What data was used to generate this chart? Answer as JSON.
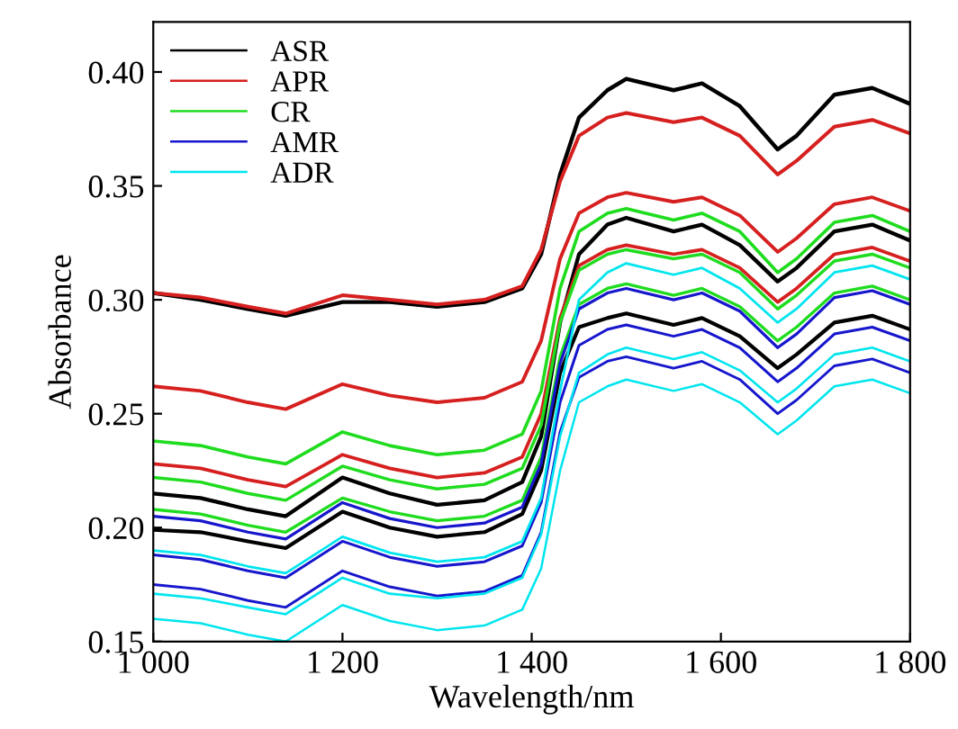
{
  "chart_data": {
    "type": "line",
    "xlabel": "Wavelength/nm",
    "ylabel": "Absorbance",
    "x": [
      1000,
      1050,
      1100,
      1140,
      1200,
      1250,
      1300,
      1350,
      1390,
      1410,
      1430,
      1450,
      1480,
      1500,
      1550,
      1580,
      1620,
      1660,
      1680,
      1720,
      1760,
      1800
    ],
    "xlim": [
      1000,
      1800
    ],
    "xticks": [
      {
        "value": 1000,
        "label": "1 000"
      },
      {
        "value": 1200,
        "label": "1 200"
      },
      {
        "value": 1400,
        "label": "1 400"
      },
      {
        "value": 1600,
        "label": "1 600"
      },
      {
        "value": 1800,
        "label": "1 800"
      }
    ],
    "ylim": [
      0.15,
      0.422
    ],
    "yticks": [
      {
        "value": 0.15,
        "label": "0.15"
      },
      {
        "value": 0.2,
        "label": "0.20"
      },
      {
        "value": 0.25,
        "label": "0.25"
      },
      {
        "value": 0.3,
        "label": "0.30"
      },
      {
        "value": 0.35,
        "label": "0.35"
      },
      {
        "value": 0.4,
        "label": "0.40"
      }
    ],
    "grid": false,
    "legend": "top left",
    "series": [
      {
        "name": "ASR",
        "color": "#000000",
        "values": [
          0.303,
          0.3,
          0.296,
          0.293,
          0.299,
          0.299,
          0.297,
          0.299,
          0.305,
          0.32,
          0.355,
          0.38,
          0.392,
          0.397,
          0.392,
          0.395,
          0.385,
          0.366,
          0.372,
          0.39,
          0.393,
          0.386
        ]
      },
      {
        "color": "#000000",
        "values": [
          0.215,
          0.213,
          0.208,
          0.205,
          0.222,
          0.215,
          0.21,
          0.212,
          0.22,
          0.24,
          0.29,
          0.32,
          0.333,
          0.336,
          0.33,
          0.333,
          0.324,
          0.308,
          0.314,
          0.33,
          0.333,
          0.326
        ]
      },
      {
        "color": "#000000",
        "values": [
          0.199,
          0.198,
          0.194,
          0.191,
          0.207,
          0.2,
          0.196,
          0.198,
          0.206,
          0.225,
          0.268,
          0.288,
          0.292,
          0.294,
          0.289,
          0.292,
          0.284,
          0.27,
          0.276,
          0.29,
          0.293,
          0.287
        ]
      },
      {
        "name": "APR",
        "color": "#d62020",
        "values": [
          0.303,
          0.301,
          0.297,
          0.294,
          0.302,
          0.3,
          0.298,
          0.3,
          0.306,
          0.322,
          0.352,
          0.372,
          0.38,
          0.382,
          0.378,
          0.38,
          0.372,
          0.355,
          0.361,
          0.376,
          0.379,
          0.373
        ]
      },
      {
        "color": "#d62020",
        "values": [
          0.262,
          0.26,
          0.255,
          0.252,
          0.263,
          0.258,
          0.255,
          0.257,
          0.264,
          0.282,
          0.318,
          0.338,
          0.345,
          0.347,
          0.343,
          0.345,
          0.337,
          0.321,
          0.327,
          0.342,
          0.345,
          0.339
        ]
      },
      {
        "color": "#d62020",
        "values": [
          0.228,
          0.226,
          0.221,
          0.218,
          0.232,
          0.226,
          0.222,
          0.224,
          0.231,
          0.25,
          0.292,
          0.315,
          0.322,
          0.324,
          0.32,
          0.322,
          0.314,
          0.299,
          0.305,
          0.32,
          0.323,
          0.317
        ]
      },
      {
        "name": "CR",
        "color": "#1fdc1f",
        "values": [
          0.238,
          0.236,
          0.231,
          0.228,
          0.242,
          0.236,
          0.232,
          0.234,
          0.241,
          0.26,
          0.305,
          0.33,
          0.338,
          0.34,
          0.335,
          0.338,
          0.33,
          0.312,
          0.318,
          0.334,
          0.337,
          0.33
        ]
      },
      {
        "color": "#1fdc1f",
        "values": [
          0.222,
          0.22,
          0.215,
          0.212,
          0.227,
          0.221,
          0.217,
          0.219,
          0.226,
          0.245,
          0.29,
          0.313,
          0.32,
          0.322,
          0.318,
          0.32,
          0.312,
          0.296,
          0.302,
          0.317,
          0.32,
          0.314
        ]
      },
      {
        "color": "#1fdc1f",
        "values": [
          0.208,
          0.206,
          0.201,
          0.198,
          0.213,
          0.207,
          0.203,
          0.205,
          0.212,
          0.231,
          0.275,
          0.298,
          0.305,
          0.307,
          0.302,
          0.305,
          0.297,
          0.282,
          0.288,
          0.303,
          0.306,
          0.3
        ]
      },
      {
        "name": "AMR",
        "color": "#1616cc",
        "values": [
          0.205,
          0.203,
          0.198,
          0.195,
          0.211,
          0.204,
          0.2,
          0.202,
          0.209,
          0.228,
          0.272,
          0.296,
          0.303,
          0.305,
          0.3,
          0.303,
          0.295,
          0.279,
          0.285,
          0.301,
          0.304,
          0.298
        ]
      },
      {
        "color": "#1616cc",
        "values": [
          0.188,
          0.186,
          0.181,
          0.178,
          0.194,
          0.187,
          0.183,
          0.185,
          0.192,
          0.211,
          0.255,
          0.28,
          0.287,
          0.289,
          0.284,
          0.287,
          0.279,
          0.264,
          0.27,
          0.285,
          0.288,
          0.282
        ]
      },
      {
        "color": "#1616cc",
        "values": [
          0.175,
          0.173,
          0.168,
          0.165,
          0.181,
          0.174,
          0.17,
          0.172,
          0.179,
          0.198,
          0.242,
          0.266,
          0.273,
          0.275,
          0.27,
          0.273,
          0.265,
          0.25,
          0.256,
          0.271,
          0.274,
          0.268
        ]
      },
      {
        "name": "ADR",
        "color": "#00e5ee",
        "values": [
          0.19,
          0.188,
          0.183,
          0.18,
          0.196,
          0.189,
          0.185,
          0.187,
          0.194,
          0.213,
          0.26,
          0.3,
          0.312,
          0.316,
          0.311,
          0.314,
          0.305,
          0.29,
          0.296,
          0.312,
          0.315,
          0.309
        ]
      },
      {
        "color": "#00e5ee",
        "values": [
          0.171,
          0.169,
          0.165,
          0.162,
          0.178,
          0.171,
          0.169,
          0.171,
          0.178,
          0.197,
          0.24,
          0.268,
          0.276,
          0.279,
          0.274,
          0.277,
          0.269,
          0.255,
          0.261,
          0.276,
          0.279,
          0.273
        ]
      },
      {
        "color": "#00e5ee",
        "values": [
          0.16,
          0.158,
          0.153,
          0.15,
          0.166,
          0.159,
          0.155,
          0.157,
          0.164,
          0.182,
          0.225,
          0.255,
          0.262,
          0.265,
          0.26,
          0.263,
          0.255,
          0.241,
          0.247,
          0.262,
          0.265,
          0.259
        ]
      }
    ]
  }
}
